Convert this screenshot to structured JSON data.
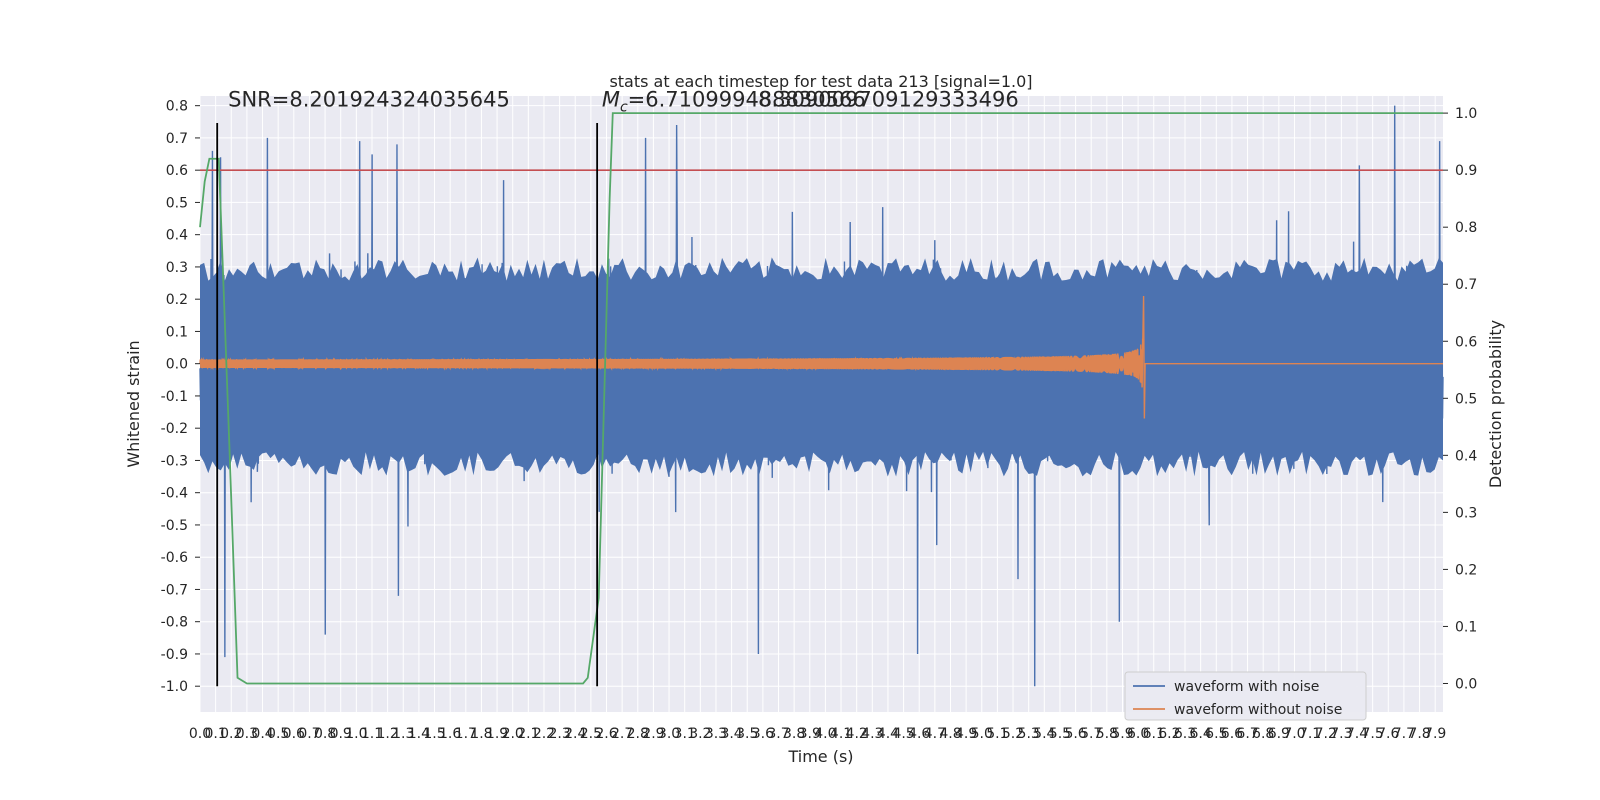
{
  "chart_data": {
    "type": "line",
    "title": "stats at each timestep for test data 213 [signal=1.0]",
    "xlabel": "Time (s)",
    "ylabel": "Whitened strain",
    "y2label": "Detection probability",
    "xlim": [
      0.0,
      7.95
    ],
    "ylim": [
      -1.08,
      0.83
    ],
    "y2lim": [
      -0.05,
      1.03
    ],
    "x_ticks": [
      0.0,
      0.1,
      0.2,
      0.3,
      0.4,
      0.5,
      0.6,
      0.7,
      0.8,
      0.9,
      1.0,
      1.1,
      1.2,
      1.3,
      1.4,
      1.5,
      1.6,
      1.7,
      1.8,
      1.9,
      2.0,
      2.1,
      2.2,
      2.3,
      2.4,
      2.5,
      2.6,
      2.7,
      2.8,
      2.9,
      3.0,
      3.1,
      3.2,
      3.3,
      3.4,
      3.5,
      3.6,
      3.7,
      3.8,
      3.9,
      4.0,
      4.1,
      4.2,
      4.3,
      4.4,
      4.5,
      4.6,
      4.7,
      4.8,
      4.9,
      5.0,
      5.1,
      5.2,
      5.3,
      5.4,
      5.5,
      5.6,
      5.7,
      5.8,
      5.9,
      6.0,
      6.1,
      6.2,
      6.3,
      6.4,
      6.5,
      6.6,
      6.7,
      6.8,
      6.9,
      7.0,
      7.1,
      7.2,
      7.3,
      7.4,
      7.5,
      7.6,
      7.7,
      7.8,
      7.9
    ],
    "y_ticks": [
      -1.0,
      -0.9,
      -0.8,
      -0.7,
      -0.6,
      -0.5,
      -0.4,
      -0.3,
      -0.2,
      -0.1,
      0.0,
      0.1,
      0.2,
      0.3,
      0.4,
      0.5,
      0.6,
      0.7,
      0.8
    ],
    "y2_ticks": [
      0.0,
      0.1,
      0.2,
      0.3,
      0.4,
      0.5,
      0.6,
      0.7,
      0.8,
      0.9,
      1.0
    ],
    "grid": true,
    "legend_position": "lower-right",
    "series": [
      {
        "name": "waveform with noise",
        "color": "#4c72b0",
        "kind": "noise",
        "x_range": [
          0.0,
          7.95
        ],
        "typical_extent": [
          -0.35,
          0.33
        ],
        "visible_peaks": [
          {
            "x": 0.08,
            "y": 0.66
          },
          {
            "x": 0.13,
            "y": 0.64
          },
          {
            "x": 0.43,
            "y": 0.7
          },
          {
            "x": 1.02,
            "y": 0.69
          },
          {
            "x": 1.26,
            "y": 0.68
          },
          {
            "x": 2.85,
            "y": 0.7
          },
          {
            "x": 3.05,
            "y": 0.74
          },
          {
            "x": 7.64,
            "y": 0.8
          },
          {
            "x": 7.93,
            "y": 0.69
          },
          {
            "x": 0.8,
            "y": -0.84
          },
          {
            "x": 1.27,
            "y": -0.72
          },
          {
            "x": 3.57,
            "y": -0.9
          },
          {
            "x": 4.59,
            "y": -0.9
          },
          {
            "x": 5.34,
            "y": -1.0
          },
          {
            "x": 5.88,
            "y": -0.8
          },
          {
            "x": 0.16,
            "y": -0.91
          }
        ]
      },
      {
        "name": "waveform without noise",
        "color": "#dd8452",
        "kind": "chirp",
        "chirp_start": 0.0,
        "chirp_merger": 6.03,
        "chirp_end_value": 0.0,
        "amplitude_start": 0.013,
        "amplitude_peak": 0.21,
        "amplitude_trough": -0.17
      },
      {
        "axis": "y2",
        "color": "#55a868",
        "points": [
          [
            0.0,
            0.8
          ],
          [
            0.03,
            0.88
          ],
          [
            0.06,
            0.92
          ],
          [
            0.09,
            0.92
          ],
          [
            0.12,
            0.92
          ],
          [
            0.15,
            0.7
          ],
          [
            0.19,
            0.4
          ],
          [
            0.24,
            0.01
          ],
          [
            0.3,
            0.0
          ],
          [
            2.45,
            0.0
          ],
          [
            2.48,
            0.01
          ],
          [
            2.55,
            0.15
          ],
          [
            2.6,
            0.65
          ],
          [
            2.62,
            0.85
          ],
          [
            2.64,
            1.0
          ],
          [
            7.95,
            1.0
          ]
        ]
      },
      {
        "axis": "y2",
        "color": "#c44e52",
        "kind": "threshold",
        "value": 0.9
      }
    ],
    "vlines": [
      {
        "x": 0.11,
        "color": "#000000"
      },
      {
        "x": 2.54,
        "color": "#000000"
      }
    ],
    "annotations": [
      {
        "text": "SNR=8.201924324035645",
        "x": 0.18,
        "y": 0.81
      },
      {
        "text": "M_c=6.710999488830566",
        "x": 2.57,
        "y": 0.81,
        "display": "=6.710999488830566",
        "symbol": "M",
        "subscript": "c"
      },
      {
        "text": "=8.309009709129333496",
        "x": 3.57,
        "y": 0.81,
        "display": "8.309009709129333496"
      }
    ]
  }
}
